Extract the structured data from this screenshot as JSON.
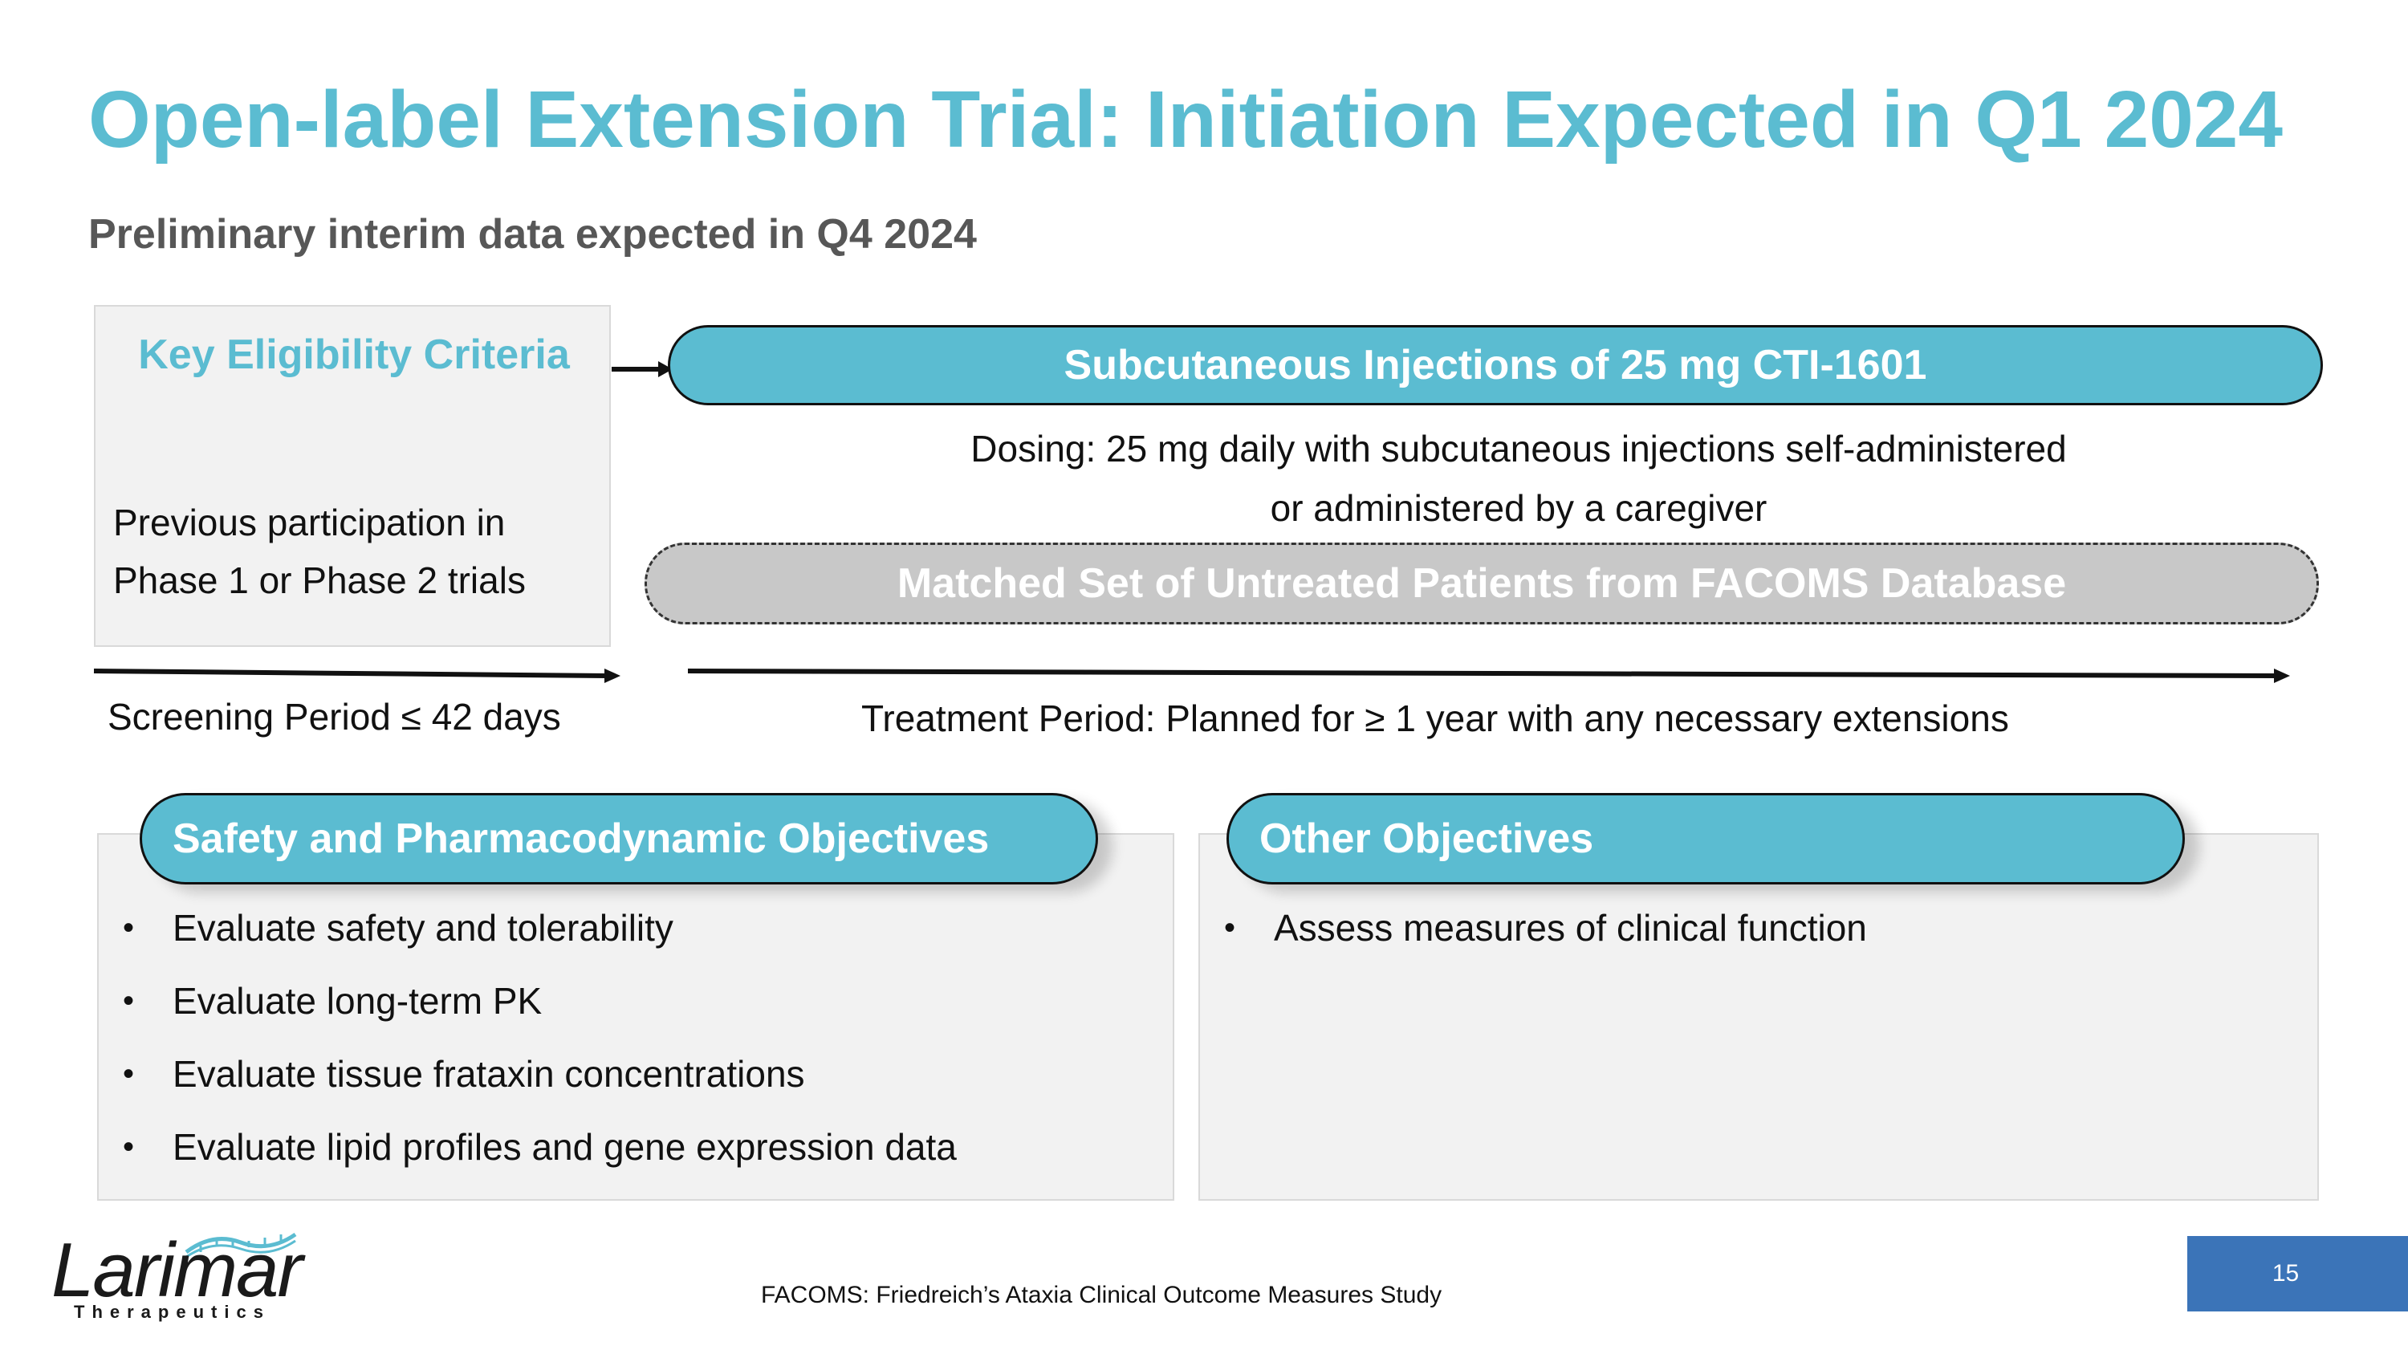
{
  "title": "Open-label Extension Trial: Initiation Expected in Q1 2024",
  "subtitle": "Preliminary interim data expected in Q4 2024",
  "eligibility": {
    "heading": "Key Eligibility Criteria",
    "text": "Previous participation in Phase 1 or Phase 2 trials"
  },
  "injection_bar": "Subcutaneous Injections of 25 mg CTI-1601",
  "dosing": {
    "line1": "Dosing: 25 mg daily with subcutaneous injections self-administered",
    "line2": "or administered by a caregiver"
  },
  "matched_set_bar": "Matched Set of Untreated Patients from FACOMS Database",
  "periods": {
    "screening": "Screening Period ≤ 42 days",
    "treatment": "Treatment Period: Planned for ≥ 1 year with any necessary extensions"
  },
  "safety_objectives": {
    "heading": "Safety and Pharmacodynamic Objectives",
    "items": [
      "Evaluate safety and tolerability",
      "Evaluate long-term PK",
      "Evaluate tissue frataxin concentrations",
      "Evaluate lipid profiles and gene expression data"
    ]
  },
  "other_objectives": {
    "heading": "Other Objectives",
    "items": [
      "Assess measures of clinical function"
    ]
  },
  "bullet_char": "•",
  "footnote": "FACOMS: Friedreich’s Ataxia Clinical Outcome Measures Study",
  "page_number": "15",
  "logo": {
    "name": "Larimar",
    "tagline": "Therapeutics"
  },
  "colors": {
    "accent": "#5bbcd1",
    "subtitle_gray": "#575757",
    "page_box": "#3b74b8"
  }
}
